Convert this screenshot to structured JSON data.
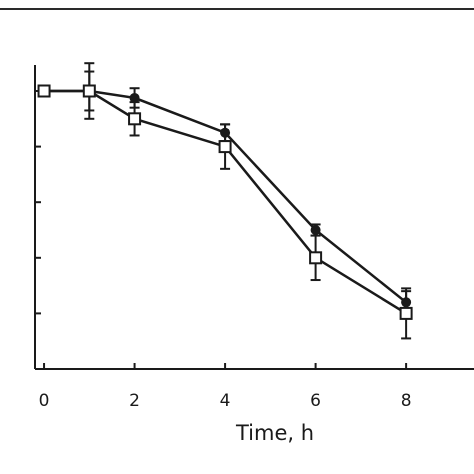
{
  "chart_data": {
    "type": "line",
    "title": "",
    "xlabel": "Time, h",
    "ylabel": "",
    "xlim": [
      -0.2,
      9.5
    ],
    "ylim": [
      0,
      100
    ],
    "x_ticks": [
      0,
      2,
      4,
      6,
      8
    ],
    "x_tick_labels": [
      "0",
      "2",
      "4",
      "6",
      "8"
    ],
    "y_ticks": [
      0,
      20,
      40,
      60,
      80,
      100
    ],
    "grid": false,
    "legend": "none",
    "series": [
      {
        "marker": "filled-circle",
        "color": "#1a1a1a",
        "x": [
          0,
          1,
          2,
          4,
          6,
          8
        ],
        "y": [
          100,
          100,
          97.5,
          85,
          50,
          24
        ],
        "error": [
          0,
          7,
          3.5,
          3,
          2,
          4
        ]
      },
      {
        "marker": "open-square",
        "color": "#1a1a1a",
        "x": [
          0,
          1,
          2,
          4,
          6,
          8
        ],
        "y": [
          100,
          100,
          90,
          80,
          40,
          20
        ],
        "error": [
          0,
          10,
          6,
          8,
          8,
          9
        ]
      }
    ]
  }
}
